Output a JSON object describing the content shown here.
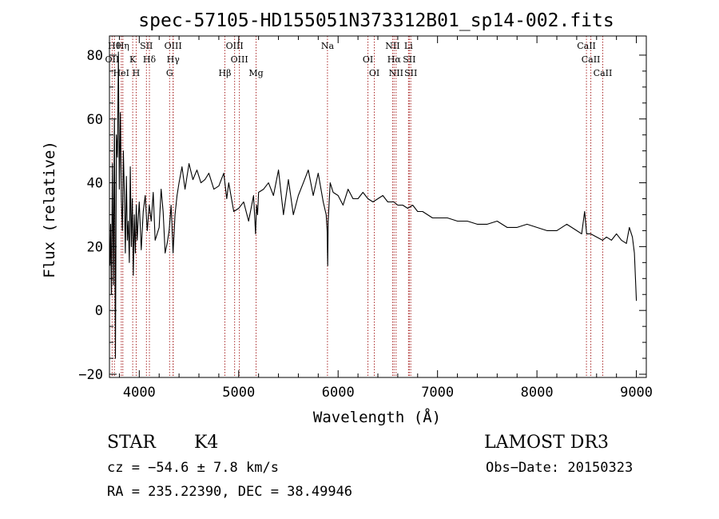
{
  "chart_data": {
    "type": "line",
    "title": "spec-57105-HD155051N373312B01_sp14-002.fits",
    "xlabel": "Wavelength (Å)",
    "ylabel": "Flux (relative)",
    "xlim": [
      3700,
      9100
    ],
    "ylim": [
      -21,
      86
    ],
    "xticks": [
      4000,
      5000,
      6000,
      7000,
      8000,
      9000
    ],
    "yticks": [
      -20,
      0,
      20,
      40,
      60,
      80
    ],
    "grid": false,
    "line_color": "#000000",
    "marker_color": "#aa2a2a",
    "spectrum": {
      "x": [
        3705,
        3712,
        3720,
        3730,
        3740,
        3750,
        3760,
        3770,
        3780,
        3790,
        3800,
        3810,
        3820,
        3830,
        3840,
        3850,
        3860,
        3870,
        3880,
        3890,
        3900,
        3910,
        3920,
        3930,
        3940,
        3950,
        3960,
        3970,
        3980,
        3990,
        4000,
        4020,
        4040,
        4060,
        4080,
        4100,
        4120,
        4140,
        4160,
        4180,
        4200,
        4220,
        4240,
        4260,
        4280,
        4300,
        4320,
        4340,
        4360,
        4380,
        4400,
        4430,
        4460,
        4500,
        4540,
        4580,
        4620,
        4660,
        4700,
        4750,
        4800,
        4850,
        4880,
        4900,
        4950,
        5000,
        5050,
        5100,
        5150,
        5170,
        5180,
        5190,
        5200,
        5250,
        5300,
        5350,
        5400,
        5450,
        5500,
        5550,
        5600,
        5650,
        5700,
        5750,
        5800,
        5850,
        5880,
        5890,
        5895,
        5900,
        5920,
        5950,
        6000,
        6050,
        6100,
        6150,
        6200,
        6250,
        6300,
        6350,
        6400,
        6450,
        6500,
        6560,
        6600,
        6650,
        6700,
        6750,
        6800,
        6850,
        6900,
        6950,
        7000,
        7100,
        7200,
        7300,
        7400,
        7500,
        7600,
        7700,
        7800,
        7900,
        8000,
        8100,
        8200,
        8300,
        8400,
        8450,
        8480,
        8500,
        8540,
        8600,
        8660,
        8700,
        8750,
        8800,
        8850,
        8900,
        8930,
        8960,
        8980,
        9000
      ],
      "y": [
        14,
        27,
        5,
        46,
        8,
        60,
        -15,
        55,
        48,
        81,
        38,
        62,
        35,
        25,
        50,
        36,
        18,
        42,
        22,
        28,
        15,
        45,
        20,
        35,
        11,
        30,
        18,
        33,
        22,
        29,
        34,
        19,
        31,
        36,
        25,
        33,
        28,
        37,
        22,
        24,
        26,
        38,
        31,
        18,
        21,
        25,
        33,
        18,
        30,
        36,
        40,
        45,
        38,
        46,
        41,
        44,
        40,
        41,
        43,
        38,
        39,
        43,
        35,
        40,
        31,
        32,
        34,
        28,
        36,
        24,
        33,
        30,
        37,
        38,
        40,
        36,
        44,
        30,
        41,
        30,
        36,
        40,
        44,
        36,
        43,
        34,
        30,
        25,
        14,
        28,
        40,
        37,
        36,
        33,
        38,
        35,
        35,
        37,
        35,
        34,
        35,
        36,
        34,
        34,
        33,
        33,
        32,
        33,
        31,
        31,
        30,
        29,
        29,
        29,
        28,
        28,
        27,
        27,
        28,
        26,
        26,
        27,
        26,
        25,
        25,
        27,
        25,
        24,
        31,
        24,
        24,
        23,
        22,
        23,
        22,
        24,
        22,
        21,
        26,
        23,
        18,
        3
      ]
    },
    "lines": [
      {
        "label": "Hθ",
        "wavelength": 3750
      },
      {
        "label": "OII",
        "wavelength": 3727
      },
      {
        "label": "HeI",
        "wavelength": 3819
      },
      {
        "label": "Hη",
        "wavelength": 3835
      },
      {
        "label": "K",
        "wavelength": 3934
      },
      {
        "label": "H",
        "wavelength": 3969
      },
      {
        "label": "SII",
        "wavelength": 4072
      },
      {
        "label": "Hδ",
        "wavelength": 4102
      },
      {
        "label": "G",
        "wavelength": 4305
      },
      {
        "label": "OIII",
        "wavelength": 4340
      },
      {
        "label": "Hγ",
        "wavelength": 4341
      },
      {
        "label": "Hβ",
        "wavelength": 4861
      },
      {
        "label": "OIII",
        "wavelength": 4959
      },
      {
        "label": "OIII",
        "wavelength": 5007
      },
      {
        "label": "Mg",
        "wavelength": 5175
      },
      {
        "label": "Na",
        "wavelength": 5893
      },
      {
        "label": "OI",
        "wavelength": 6300
      },
      {
        "label": "OI",
        "wavelength": 6364
      },
      {
        "label": "NII",
        "wavelength": 6548
      },
      {
        "label": "Hα",
        "wavelength": 6563
      },
      {
        "label": "NII",
        "wavelength": 6583
      },
      {
        "label": "Li",
        "wavelength": 6708
      },
      {
        "label": "SII",
        "wavelength": 6716
      },
      {
        "label": "SII",
        "wavelength": 6731
      },
      {
        "label": "CaII",
        "wavelength": 8498
      },
      {
        "label": "CaII",
        "wavelength": 8542
      },
      {
        "label": "CaII",
        "wavelength": 8662
      }
    ]
  },
  "info": {
    "class": "STAR",
    "subclass": "K4",
    "survey": "LAMOST DR3",
    "redshift": "cz = −54.6 ± 7.8 km/s",
    "obs_date": "Obs−Date: 20150323",
    "coords": "RA = 235.22390, DEC =  38.49946"
  }
}
